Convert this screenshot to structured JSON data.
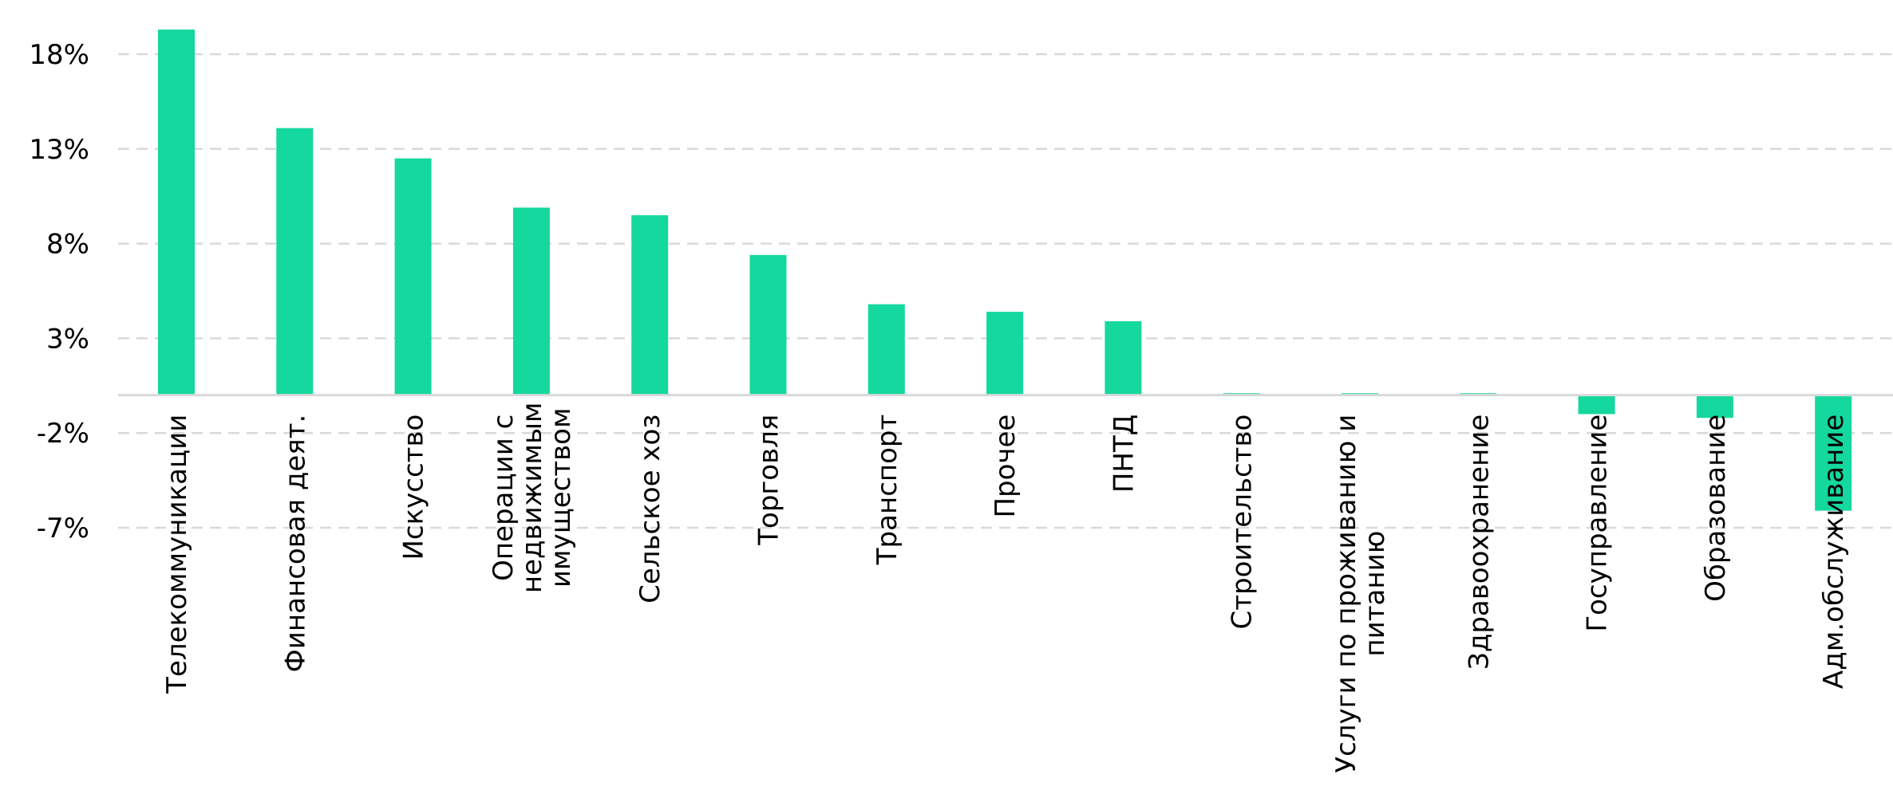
{
  "chart_data": {
    "type": "bar",
    "title": "",
    "xlabel": "",
    "ylabel": "",
    "ylim": [
      -8.5,
      19.5
    ],
    "yticks": [
      {
        "value": 18,
        "label": "18%"
      },
      {
        "value": 13,
        "label": "13%"
      },
      {
        "value": 8,
        "label": "8%"
      },
      {
        "value": 3,
        "label": "3%"
      },
      {
        "value": -2,
        "label": "-2%"
      },
      {
        "value": -7,
        "label": "-7%"
      }
    ],
    "grid": true,
    "categories": [
      [
        "Телекоммуникации"
      ],
      [
        "Финансовая деят."
      ],
      [
        "Искусство"
      ],
      [
        "Операции с",
        "недвижимым",
        "имуществом"
      ],
      [
        "Сельское хоз"
      ],
      [
        "Торговля"
      ],
      [
        "Транспорт"
      ],
      [
        "Прочее"
      ],
      [
        "ПНТД"
      ],
      [
        "Строительство"
      ],
      [
        "Услуги по проживанию и",
        "питанию"
      ],
      [
        "Здравоохранение"
      ],
      [
        "Госуправление"
      ],
      [
        "Образование"
      ],
      [
        "Адм.обслуживание"
      ]
    ],
    "values": [
      19.3,
      14.1,
      12.5,
      9.9,
      9.5,
      7.4,
      4.8,
      4.4,
      3.9,
      0.1,
      0.1,
      0.1,
      -1.0,
      -1.2,
      -6.1
    ],
    "colors": {
      "bar": "#14D89E",
      "grid": "#D9D9D9",
      "zero_line": "#D9D9D9",
      "text": "#000000"
    }
  }
}
